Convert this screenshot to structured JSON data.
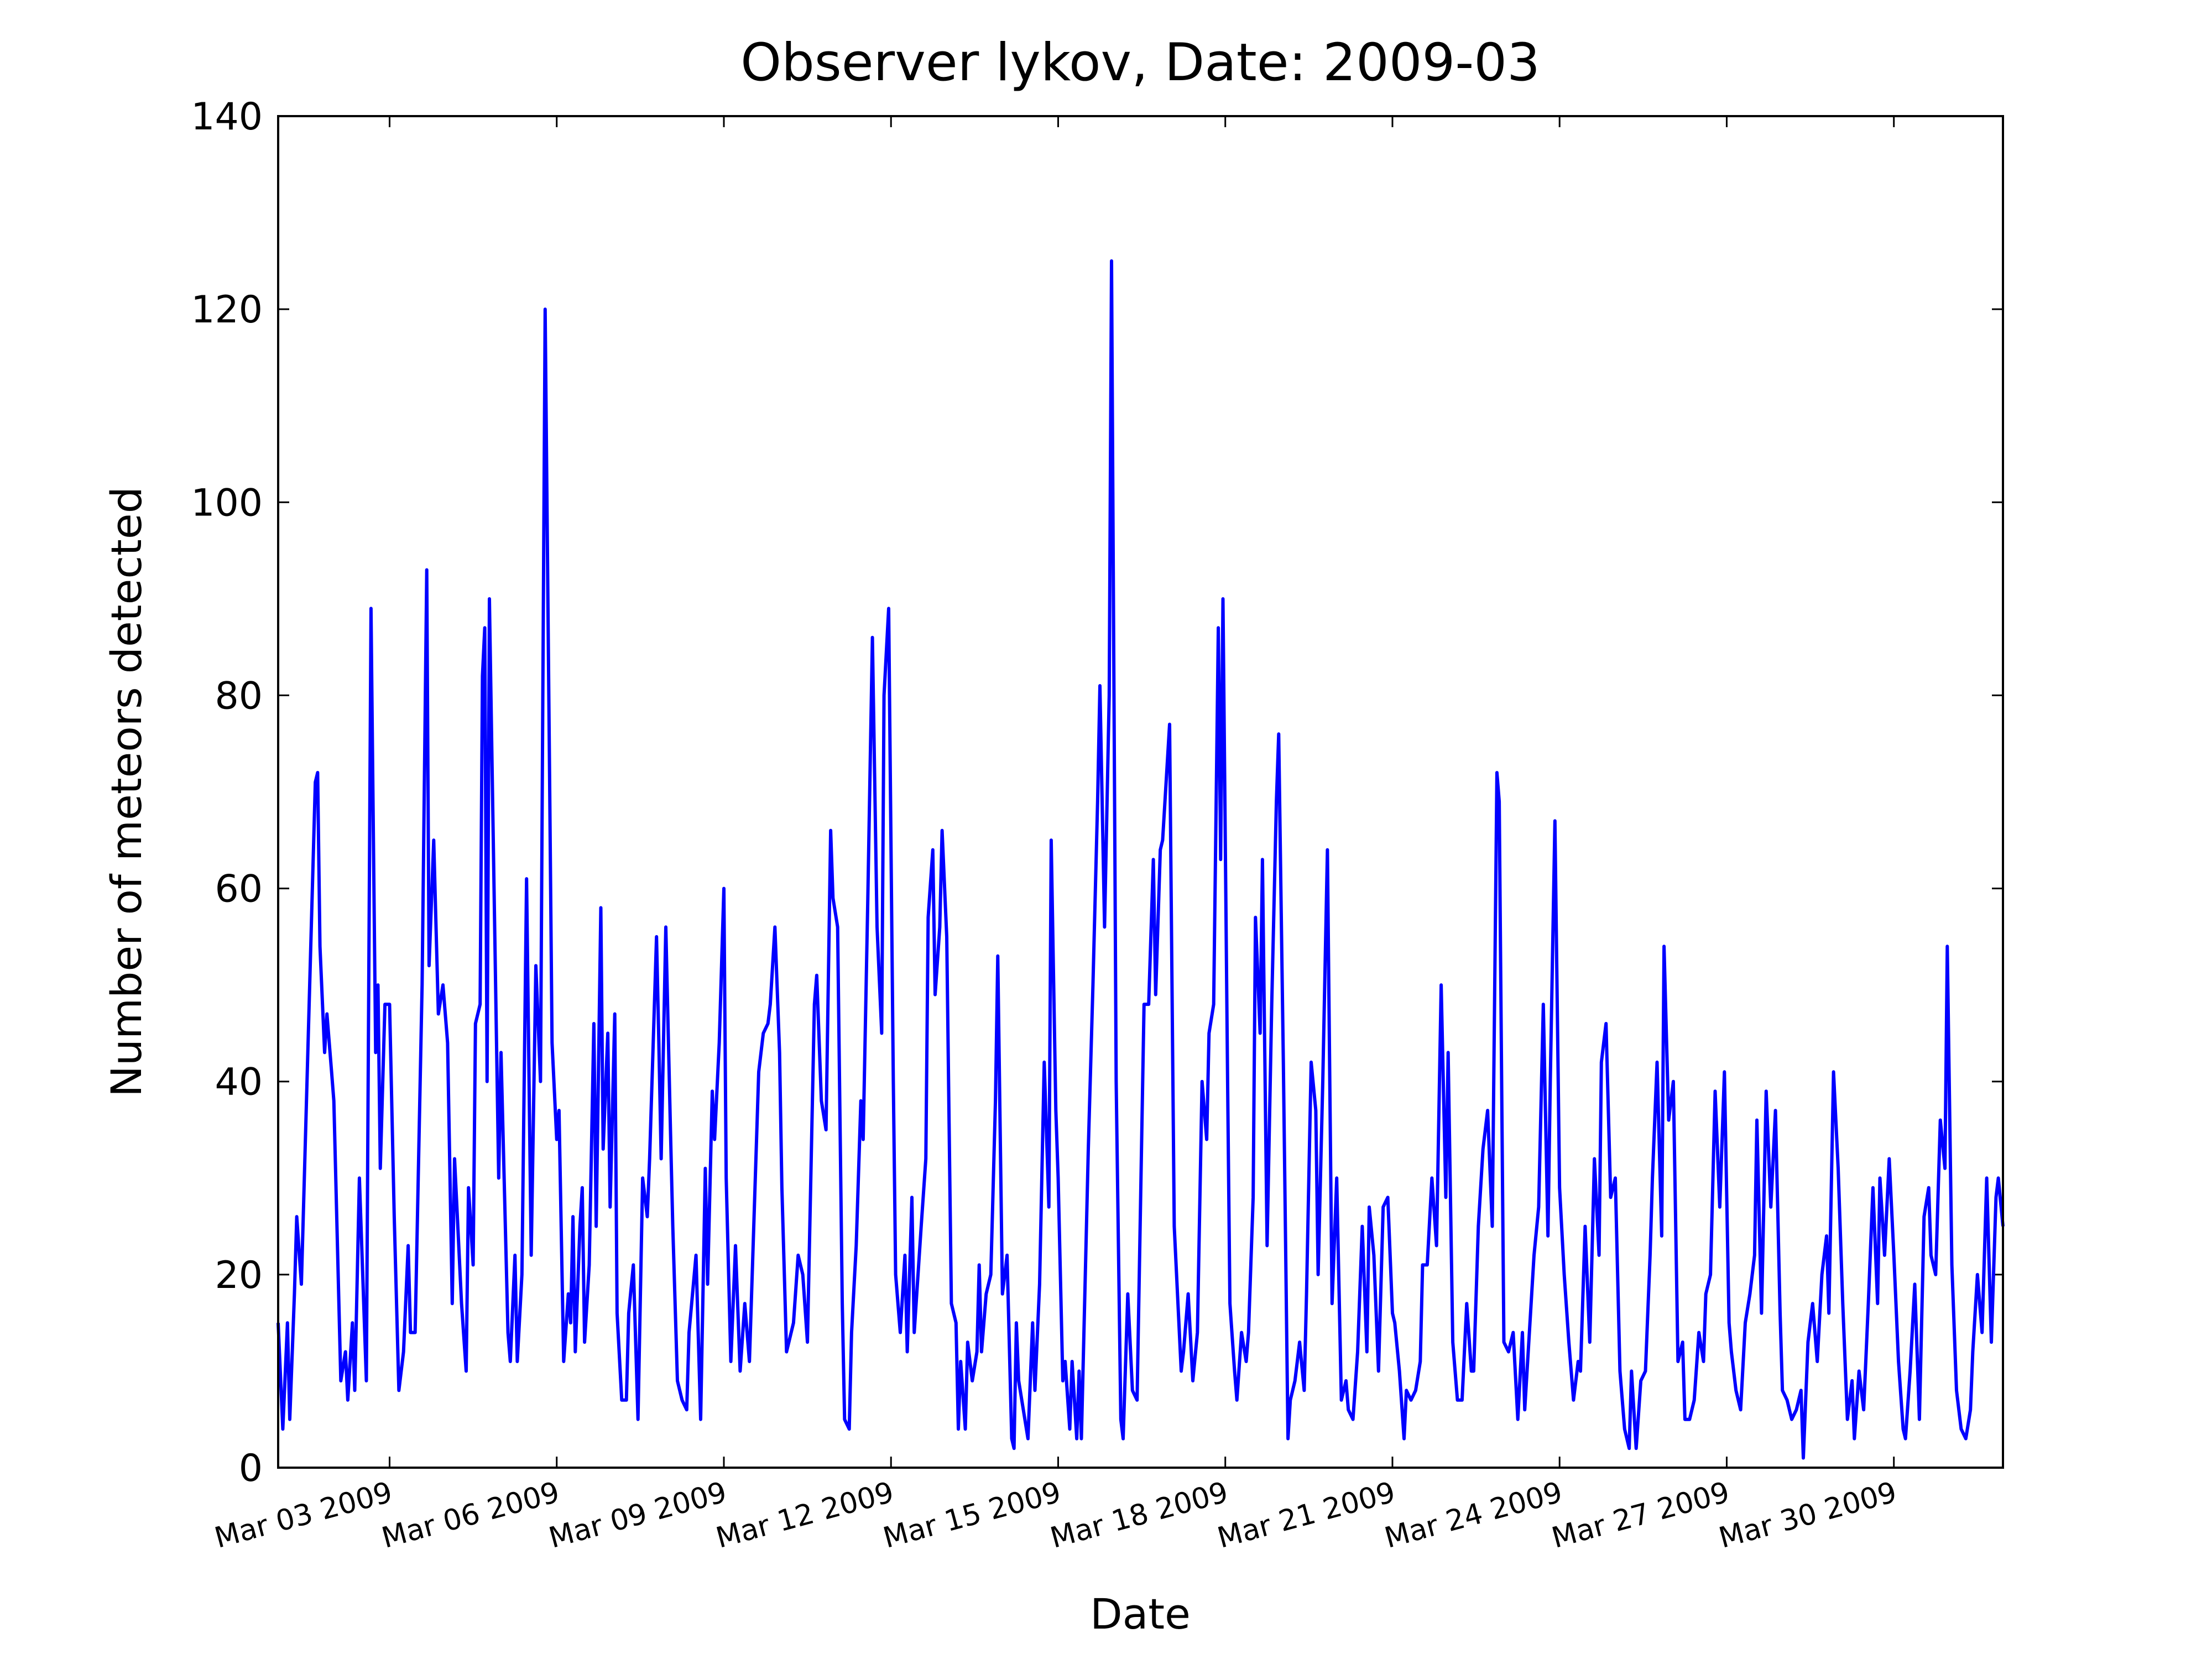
{
  "chart_data": {
    "type": "line",
    "title": "Observer lykov, Date: 2009-03",
    "x_label": "Date",
    "y_label": "Number of meteors detected",
    "color": "#0000ff",
    "x": [
      "2009-03-01T00:00",
      "2009-03-01T02:00",
      "2009-03-01T04:00",
      "2009-03-01T05:00",
      "2009-03-01T07:00",
      "2009-03-01T08:00",
      "2009-03-01T10:00",
      "2009-03-01T13:00",
      "2009-03-01T16:00",
      "2009-03-01T17:00",
      "2009-03-01T18:00",
      "2009-03-01T20:00",
      "2009-03-01T21:00",
      "2009-03-01T23:00",
      "2009-03-02T00:00",
      "2009-03-02T03:00",
      "2009-03-02T05:00",
      "2009-03-02T06:00",
      "2009-03-02T08:00",
      "2009-03-02T09:00",
      "2009-03-02T11:00",
      "2009-03-02T14:00",
      "2009-03-02T16:00",
      "2009-03-02T18:00",
      "2009-03-02T19:00",
      "2009-03-02T20:00",
      "2009-03-02T22:00",
      "2009-03-03T00:00",
      "2009-03-03T02:00",
      "2009-03-03T04:00",
      "2009-03-03T06:00",
      "2009-03-03T08:00",
      "2009-03-03T09:00",
      "2009-03-03T11:00",
      "2009-03-03T14:00",
      "2009-03-03T16:00",
      "2009-03-03T17:00",
      "2009-03-03T19:00",
      "2009-03-03T21:00",
      "2009-03-03T23:00",
      "2009-03-04T01:00",
      "2009-03-04T03:00",
      "2009-03-04T04:00",
      "2009-03-04T07:00",
      "2009-03-04T09:00",
      "2009-03-04T10:00",
      "2009-03-04T12:00",
      "2009-03-04T13:00",
      "2009-03-04T15:00",
      "2009-03-04T16:00",
      "2009-03-04T17:00",
      "2009-03-04T18:00",
      "2009-03-04T19:00",
      "2009-03-04T21:00",
      "2009-03-04T23:00",
      "2009-03-05T00:00",
      "2009-03-05T03:00",
      "2009-03-05T04:00",
      "2009-03-05T06:00",
      "2009-03-05T07:00",
      "2009-03-05T09:00",
      "2009-03-05T11:00",
      "2009-03-05T13:00",
      "2009-03-05T15:00",
      "2009-03-05T17:00",
      "2009-03-05T19:00",
      "2009-03-05T21:00",
      "2009-03-05T22:00",
      "2009-03-06T00:00",
      "2009-03-06T01:00",
      "2009-03-06T03:00",
      "2009-03-06T05:00",
      "2009-03-06T06:00",
      "2009-03-06T07:00",
      "2009-03-06T08:00",
      "2009-03-06T10:00",
      "2009-03-06T11:00",
      "2009-03-06T12:00",
      "2009-03-06T14:00",
      "2009-03-06T16:00",
      "2009-03-06T17:00",
      "2009-03-06T19:00",
      "2009-03-06T20:00",
      "2009-03-06T22:00",
      "2009-03-06T23:00",
      "2009-03-07T01:00",
      "2009-03-07T02:00",
      "2009-03-07T04:00",
      "2009-03-07T06:00",
      "2009-03-07T07:00",
      "2009-03-07T09:00",
      "2009-03-07T11:00",
      "2009-03-07T13:00",
      "2009-03-07T15:00",
      "2009-03-07T16:00",
      "2009-03-07T19:00",
      "2009-03-07T20:00",
      "2009-03-07T21:00",
      "2009-03-07T23:00",
      "2009-03-08T01:00",
      "2009-03-08T02:00",
      "2009-03-08T04:00",
      "2009-03-08T06:00",
      "2009-03-08T08:00",
      "2009-03-08T09:00",
      "2009-03-08T12:00",
      "2009-03-08T14:00",
      "2009-03-08T16:00",
      "2009-03-08T17:00",
      "2009-03-08T19:00",
      "2009-03-08T20:00",
      "2009-03-08T22:00",
      "2009-03-09T00:00",
      "2009-03-09T01:00",
      "2009-03-09T03:00",
      "2009-03-09T05:00",
      "2009-03-09T07:00",
      "2009-03-09T09:00",
      "2009-03-09T11:00",
      "2009-03-09T13:00",
      "2009-03-09T15:00",
      "2009-03-09T17:00",
      "2009-03-09T19:00",
      "2009-03-09T20:00",
      "2009-03-09T22:00",
      "2009-03-10T00:00",
      "2009-03-10T01:00",
      "2009-03-10T03:00",
      "2009-03-10T06:00",
      "2009-03-10T08:00",
      "2009-03-10T10:00",
      "2009-03-10T12:00",
      "2009-03-10T15:00",
      "2009-03-10T16:00",
      "2009-03-10T18:00",
      "2009-03-10T20:00",
      "2009-03-10T22:00",
      "2009-03-10T23:00",
      "2009-03-11T01:00",
      "2009-03-11T03:00",
      "2009-03-11T04:00",
      "2009-03-11T06:00",
      "2009-03-11T07:00",
      "2009-03-11T09:00",
      "2009-03-11T11:00",
      "2009-03-11T12:00",
      "2009-03-11T14:00",
      "2009-03-11T16:00",
      "2009-03-11T18:00",
      "2009-03-11T20:00",
      "2009-03-11T21:00",
      "2009-03-11T23:00",
      "2009-03-12T01:00",
      "2009-03-12T02:00",
      "2009-03-12T04:00",
      "2009-03-12T06:00",
      "2009-03-12T07:00",
      "2009-03-12T09:00",
      "2009-03-12T10:00",
      "2009-03-12T13:00",
      "2009-03-12T15:00",
      "2009-03-12T16:00",
      "2009-03-12T18:00",
      "2009-03-12T19:00",
      "2009-03-12T21:00",
      "2009-03-12T22:00",
      "2009-03-13T00:00",
      "2009-03-13T02:00",
      "2009-03-13T04:00",
      "2009-03-13T05:00",
      "2009-03-13T06:00",
      "2009-03-13T08:00",
      "2009-03-13T09:00",
      "2009-03-13T11:00",
      "2009-03-13T13:00",
      "2009-03-13T14:00",
      "2009-03-13T15:00",
      "2009-03-13T17:00",
      "2009-03-13T19:00",
      "2009-03-13T21:00",
      "2009-03-13T22:00",
      "2009-03-14T00:00",
      "2009-03-14T02:00",
      "2009-03-14T04:00",
      "2009-03-14T05:00",
      "2009-03-14T06:00",
      "2009-03-14T07:00",
      "2009-03-14T09:00",
      "2009-03-14T11:00",
      "2009-03-14T13:00",
      "2009-03-14T14:00",
      "2009-03-14T16:00",
      "2009-03-14T18:00",
      "2009-03-14T20:00",
      "2009-03-14T21:00",
      "2009-03-14T23:00",
      "2009-03-15T00:00",
      "2009-03-15T02:00",
      "2009-03-15T03:00",
      "2009-03-15T05:00",
      "2009-03-15T06:00",
      "2009-03-15T08:00",
      "2009-03-15T09:00",
      "2009-03-15T10:00",
      "2009-03-15T13:00",
      "2009-03-15T15:00",
      "2009-03-15T17:00",
      "2009-03-15T18:00",
      "2009-03-15T20:00",
      "2009-03-15T22:00",
      "2009-03-15T23:00",
      "2009-03-16T01:00",
      "2009-03-16T03:00",
      "2009-03-16T04:00",
      "2009-03-16T06:00",
      "2009-03-16T08:00",
      "2009-03-16T10:00",
      "2009-03-16T13:00",
      "2009-03-16T15:00",
      "2009-03-16T17:00",
      "2009-03-16T18:00",
      "2009-03-16T20:00",
      "2009-03-16T21:00",
      "2009-03-17T00:00",
      "2009-03-17T02:00",
      "2009-03-17T05:00",
      "2009-03-17T06:00",
      "2009-03-17T08:00",
      "2009-03-17T10:00",
      "2009-03-17T12:00",
      "2009-03-17T14:00",
      "2009-03-17T16:00",
      "2009-03-17T17:00",
      "2009-03-17T19:00",
      "2009-03-17T21:00",
      "2009-03-17T22:00",
      "2009-03-17T23:00",
      "2009-03-18T01:00",
      "2009-03-18T02:00",
      "2009-03-18T04:00",
      "2009-03-18T05:00",
      "2009-03-18T07:00",
      "2009-03-18T09:00",
      "2009-03-18T10:00",
      "2009-03-18T12:00",
      "2009-03-18T13:00",
      "2009-03-18T15:00",
      "2009-03-18T16:00",
      "2009-03-18T18:00",
      "2009-03-18T20:00",
      "2009-03-18T22:00",
      "2009-03-18T23:00",
      "2009-03-19T01:00",
      "2009-03-19T03:00",
      "2009-03-19T04:00",
      "2009-03-19T06:00",
      "2009-03-19T08:00",
      "2009-03-19T10:00",
      "2009-03-19T11:00",
      "2009-03-19T13:00",
      "2009-03-19T15:00",
      "2009-03-19T16:00",
      "2009-03-19T18:00",
      "2009-03-19T20:00",
      "2009-03-19T22:00",
      "2009-03-20T00:00",
      "2009-03-20T02:00",
      "2009-03-20T04:00",
      "2009-03-20T05:00",
      "2009-03-20T07:00",
      "2009-03-20T09:00",
      "2009-03-20T11:00",
      "2009-03-20T13:00",
      "2009-03-20T14:00",
      "2009-03-20T16:00",
      "2009-03-20T18:00",
      "2009-03-20T20:00",
      "2009-03-20T22:00",
      "2009-03-21T00:00",
      "2009-03-21T01:00",
      "2009-03-21T03:00",
      "2009-03-21T05:00",
      "2009-03-21T06:00",
      "2009-03-21T08:00",
      "2009-03-21T10:00",
      "2009-03-21T12:00",
      "2009-03-21T13:00",
      "2009-03-21T15:00",
      "2009-03-21T17:00",
      "2009-03-21T19:00",
      "2009-03-21T21:00",
      "2009-03-21T23:00",
      "2009-03-22T00:00",
      "2009-03-22T02:00",
      "2009-03-22T04:00",
      "2009-03-22T06:00",
      "2009-03-22T08:00",
      "2009-03-22T10:00",
      "2009-03-22T11:00",
      "2009-03-22T13:00",
      "2009-03-22T15:00",
      "2009-03-22T17:00",
      "2009-03-22T19:00",
      "2009-03-22T21:00",
      "2009-03-22T22:00",
      "2009-03-23T00:00",
      "2009-03-23T02:00",
      "2009-03-23T04:00",
      "2009-03-23T06:00",
      "2009-03-23T08:00",
      "2009-03-23T09:00",
      "2009-03-23T11:00",
      "2009-03-23T13:00",
      "2009-03-23T15:00",
      "2009-03-23T17:00",
      "2009-03-23T19:00",
      "2009-03-23T20:00",
      "2009-03-23T22:00",
      "2009-03-24T00:00",
      "2009-03-24T02:00",
      "2009-03-24T04:00",
      "2009-03-24T06:00",
      "2009-03-24T08:00",
      "2009-03-24T09:00",
      "2009-03-24T11:00",
      "2009-03-24T13:00",
      "2009-03-24T15:00",
      "2009-03-24T17:00",
      "2009-03-24T18:00",
      "2009-03-24T20:00",
      "2009-03-24T22:00",
      "2009-03-25T00:00",
      "2009-03-25T02:00",
      "2009-03-25T04:00",
      "2009-03-25T06:00",
      "2009-03-25T07:00",
      "2009-03-25T09:00",
      "2009-03-25T11:00",
      "2009-03-25T13:00",
      "2009-03-25T15:00",
      "2009-03-25T16:00",
      "2009-03-25T18:00",
      "2009-03-25T20:00",
      "2009-03-25T21:00",
      "2009-03-25T23:00",
      "2009-03-26T01:00",
      "2009-03-26T03:00",
      "2009-03-26T05:00",
      "2009-03-26T06:00",
      "2009-03-26T08:00",
      "2009-03-26T10:00",
      "2009-03-26T12:00",
      "2009-03-26T14:00",
      "2009-03-26T15:00",
      "2009-03-26T17:00",
      "2009-03-26T19:00",
      "2009-03-26T21:00",
      "2009-03-26T23:00",
      "2009-03-27T01:00",
      "2009-03-27T02:00",
      "2009-03-27T04:00",
      "2009-03-27T06:00",
      "2009-03-27T08:00",
      "2009-03-27T10:00",
      "2009-03-27T12:00",
      "2009-03-27T13:00",
      "2009-03-27T15:00",
      "2009-03-27T17:00",
      "2009-03-27T19:00",
      "2009-03-27T21:00",
      "2009-03-27T23:00",
      "2009-03-28T00:00",
      "2009-03-28T02:00",
      "2009-03-28T04:00",
      "2009-03-28T06:00",
      "2009-03-28T08:00",
      "2009-03-28T09:00",
      "2009-03-28T11:00",
      "2009-03-28T13:00",
      "2009-03-28T15:00",
      "2009-03-28T17:00",
      "2009-03-28T19:00",
      "2009-03-28T20:00",
      "2009-03-28T22:00",
      "2009-03-29T00:00",
      "2009-03-29T02:00",
      "2009-03-29T04:00",
      "2009-03-29T06:00",
      "2009-03-29T07:00",
      "2009-03-29T09:00",
      "2009-03-29T11:00",
      "2009-03-29T13:00",
      "2009-03-29T15:00",
      "2009-03-29T17:00",
      "2009-03-29T18:00",
      "2009-03-29T20:00",
      "2009-03-29T22:00",
      "2009-03-30T00:00",
      "2009-03-30T02:00",
      "2009-03-30T04:00",
      "2009-03-30T05:00",
      "2009-03-30T07:00",
      "2009-03-30T09:00",
      "2009-03-30T11:00",
      "2009-03-30T13:00",
      "2009-03-30T15:00",
      "2009-03-30T16:00",
      "2009-03-30T18:00",
      "2009-03-30T20:00",
      "2009-03-30T22:00",
      "2009-03-30T23:00",
      "2009-03-31T01:00",
      "2009-03-31T03:00",
      "2009-03-31T05:00",
      "2009-03-31T07:00",
      "2009-03-31T09:00",
      "2009-03-31T10:00",
      "2009-03-31T12:00",
      "2009-03-31T14:00",
      "2009-03-31T16:00",
      "2009-03-31T18:00",
      "2009-03-31T20:00",
      "2009-03-31T21:00",
      "2009-03-31T23:00"
    ],
    "values": [
      15,
      4,
      15,
      5,
      18,
      26,
      19,
      45,
      71,
      72,
      54,
      43,
      47,
      41,
      38,
      9,
      12,
      7,
      15,
      8,
      30,
      9,
      89,
      43,
      50,
      31,
      48,
      48,
      26,
      8,
      12,
      23,
      14,
      14,
      50,
      93,
      52,
      65,
      47,
      50,
      44,
      17,
      32,
      17,
      10,
      29,
      21,
      46,
      48,
      82,
      87,
      40,
      90,
      60,
      30,
      43,
      14,
      11,
      22,
      11,
      20,
      61,
      22,
      52,
      40,
      120,
      70,
      44,
      34,
      37,
      11,
      18,
      15,
      26,
      12,
      25,
      29,
      13,
      21,
      46,
      25,
      58,
      33,
      45,
      27,
      47,
      16,
      7,
      7,
      16,
      21,
      5,
      30,
      26,
      32,
      55,
      44,
      32,
      56,
      35,
      25,
      9,
      7,
      6,
      14,
      22,
      5,
      31,
      19,
      39,
      34,
      44,
      60,
      30,
      11,
      23,
      10,
      17,
      11,
      26,
      41,
      45,
      46,
      48,
      56,
      43,
      29,
      12,
      15,
      22,
      20,
      13,
      48,
      51,
      38,
      35,
      66,
      59,
      56,
      17,
      5,
      4,
      14,
      23,
      38,
      34,
      59,
      86,
      56,
      45,
      80,
      89,
      40,
      20,
      14,
      22,
      12,
      28,
      14,
      25,
      32,
      57,
      64,
      49,
      56,
      66,
      55,
      17,
      15,
      4,
      11,
      4,
      13,
      9,
      12,
      21,
      12,
      18,
      20,
      38,
      53,
      18,
      22,
      3,
      2,
      15,
      9,
      6,
      3,
      15,
      8,
      19,
      42,
      27,
      65,
      37,
      30,
      9,
      11,
      4,
      11,
      3,
      10,
      3,
      33,
      50,
      69,
      81,
      56,
      80,
      125,
      40,
      5,
      3,
      18,
      8,
      7,
      48,
      48,
      63,
      49,
      64,
      65,
      77,
      25,
      10,
      12,
      18,
      9,
      14,
      40,
      34,
      45,
      48,
      87,
      63,
      90,
      40,
      17,
      10,
      7,
      14,
      11,
      14,
      28,
      57,
      45,
      63,
      23,
      48,
      69,
      76,
      42,
      3,
      7,
      9,
      13,
      8,
      18,
      42,
      37,
      20,
      40,
      64,
      17,
      30,
      7,
      9,
      6,
      5,
      12,
      25,
      12,
      27,
      22,
      10,
      27,
      28,
      16,
      15,
      10,
      3,
      8,
      7,
      8,
      11,
      21,
      21,
      30,
      23,
      50,
      28,
      43,
      13,
      7,
      7,
      17,
      10,
      10,
      25,
      33,
      37,
      25,
      72,
      69,
      13,
      12,
      14,
      5,
      14,
      6,
      14,
      22,
      27,
      48,
      24,
      40,
      67,
      29,
      20,
      13,
      7,
      11,
      10,
      25,
      13,
      32,
      22,
      42,
      46,
      28,
      30,
      10,
      4,
      2,
      10,
      2,
      9,
      10,
      22,
      30,
      42,
      24,
      54,
      36,
      40,
      11,
      13,
      5,
      5,
      7,
      14,
      11,
      18,
      20,
      39,
      27,
      41,
      15,
      12,
      8,
      6,
      15,
      18,
      22,
      36,
      16,
      39,
      27,
      37,
      16,
      8,
      7,
      5,
      6,
      8,
      1,
      13,
      17,
      11,
      20,
      24,
      16,
      41,
      31,
      17,
      5,
      9,
      3,
      10,
      6,
      17,
      29,
      17,
      30,
      22,
      32,
      22,
      11,
      4,
      3,
      10,
      19,
      5,
      26,
      29,
      22,
      20,
      36,
      31,
      54,
      21,
      8,
      4,
      3,
      6,
      12,
      20,
      14,
      30,
      13,
      28,
      30,
      25
    ],
    "xlim": [
      "2009-03-01T00:00",
      "2009-03-31T23:00"
    ],
    "xticks": [
      {
        "value": "2009-03-03",
        "label": "Mar 03 2009"
      },
      {
        "value": "2009-03-06",
        "label": "Mar 06 2009"
      },
      {
        "value": "2009-03-09",
        "label": "Mar 09 2009"
      },
      {
        "value": "2009-03-12",
        "label": "Mar 12 2009"
      },
      {
        "value": "2009-03-15",
        "label": "Mar 15 2009"
      },
      {
        "value": "2009-03-18",
        "label": "Mar 18 2009"
      },
      {
        "value": "2009-03-21",
        "label": "Mar 21 2009"
      },
      {
        "value": "2009-03-24",
        "label": "Mar 24 2009"
      },
      {
        "value": "2009-03-27",
        "label": "Mar 27 2009"
      },
      {
        "value": "2009-03-30",
        "label": "Mar 30 2009"
      }
    ],
    "ylim": [
      0,
      140
    ],
    "yticks": [
      0,
      20,
      40,
      60,
      80,
      100,
      120,
      140
    ],
    "grid": false
  }
}
